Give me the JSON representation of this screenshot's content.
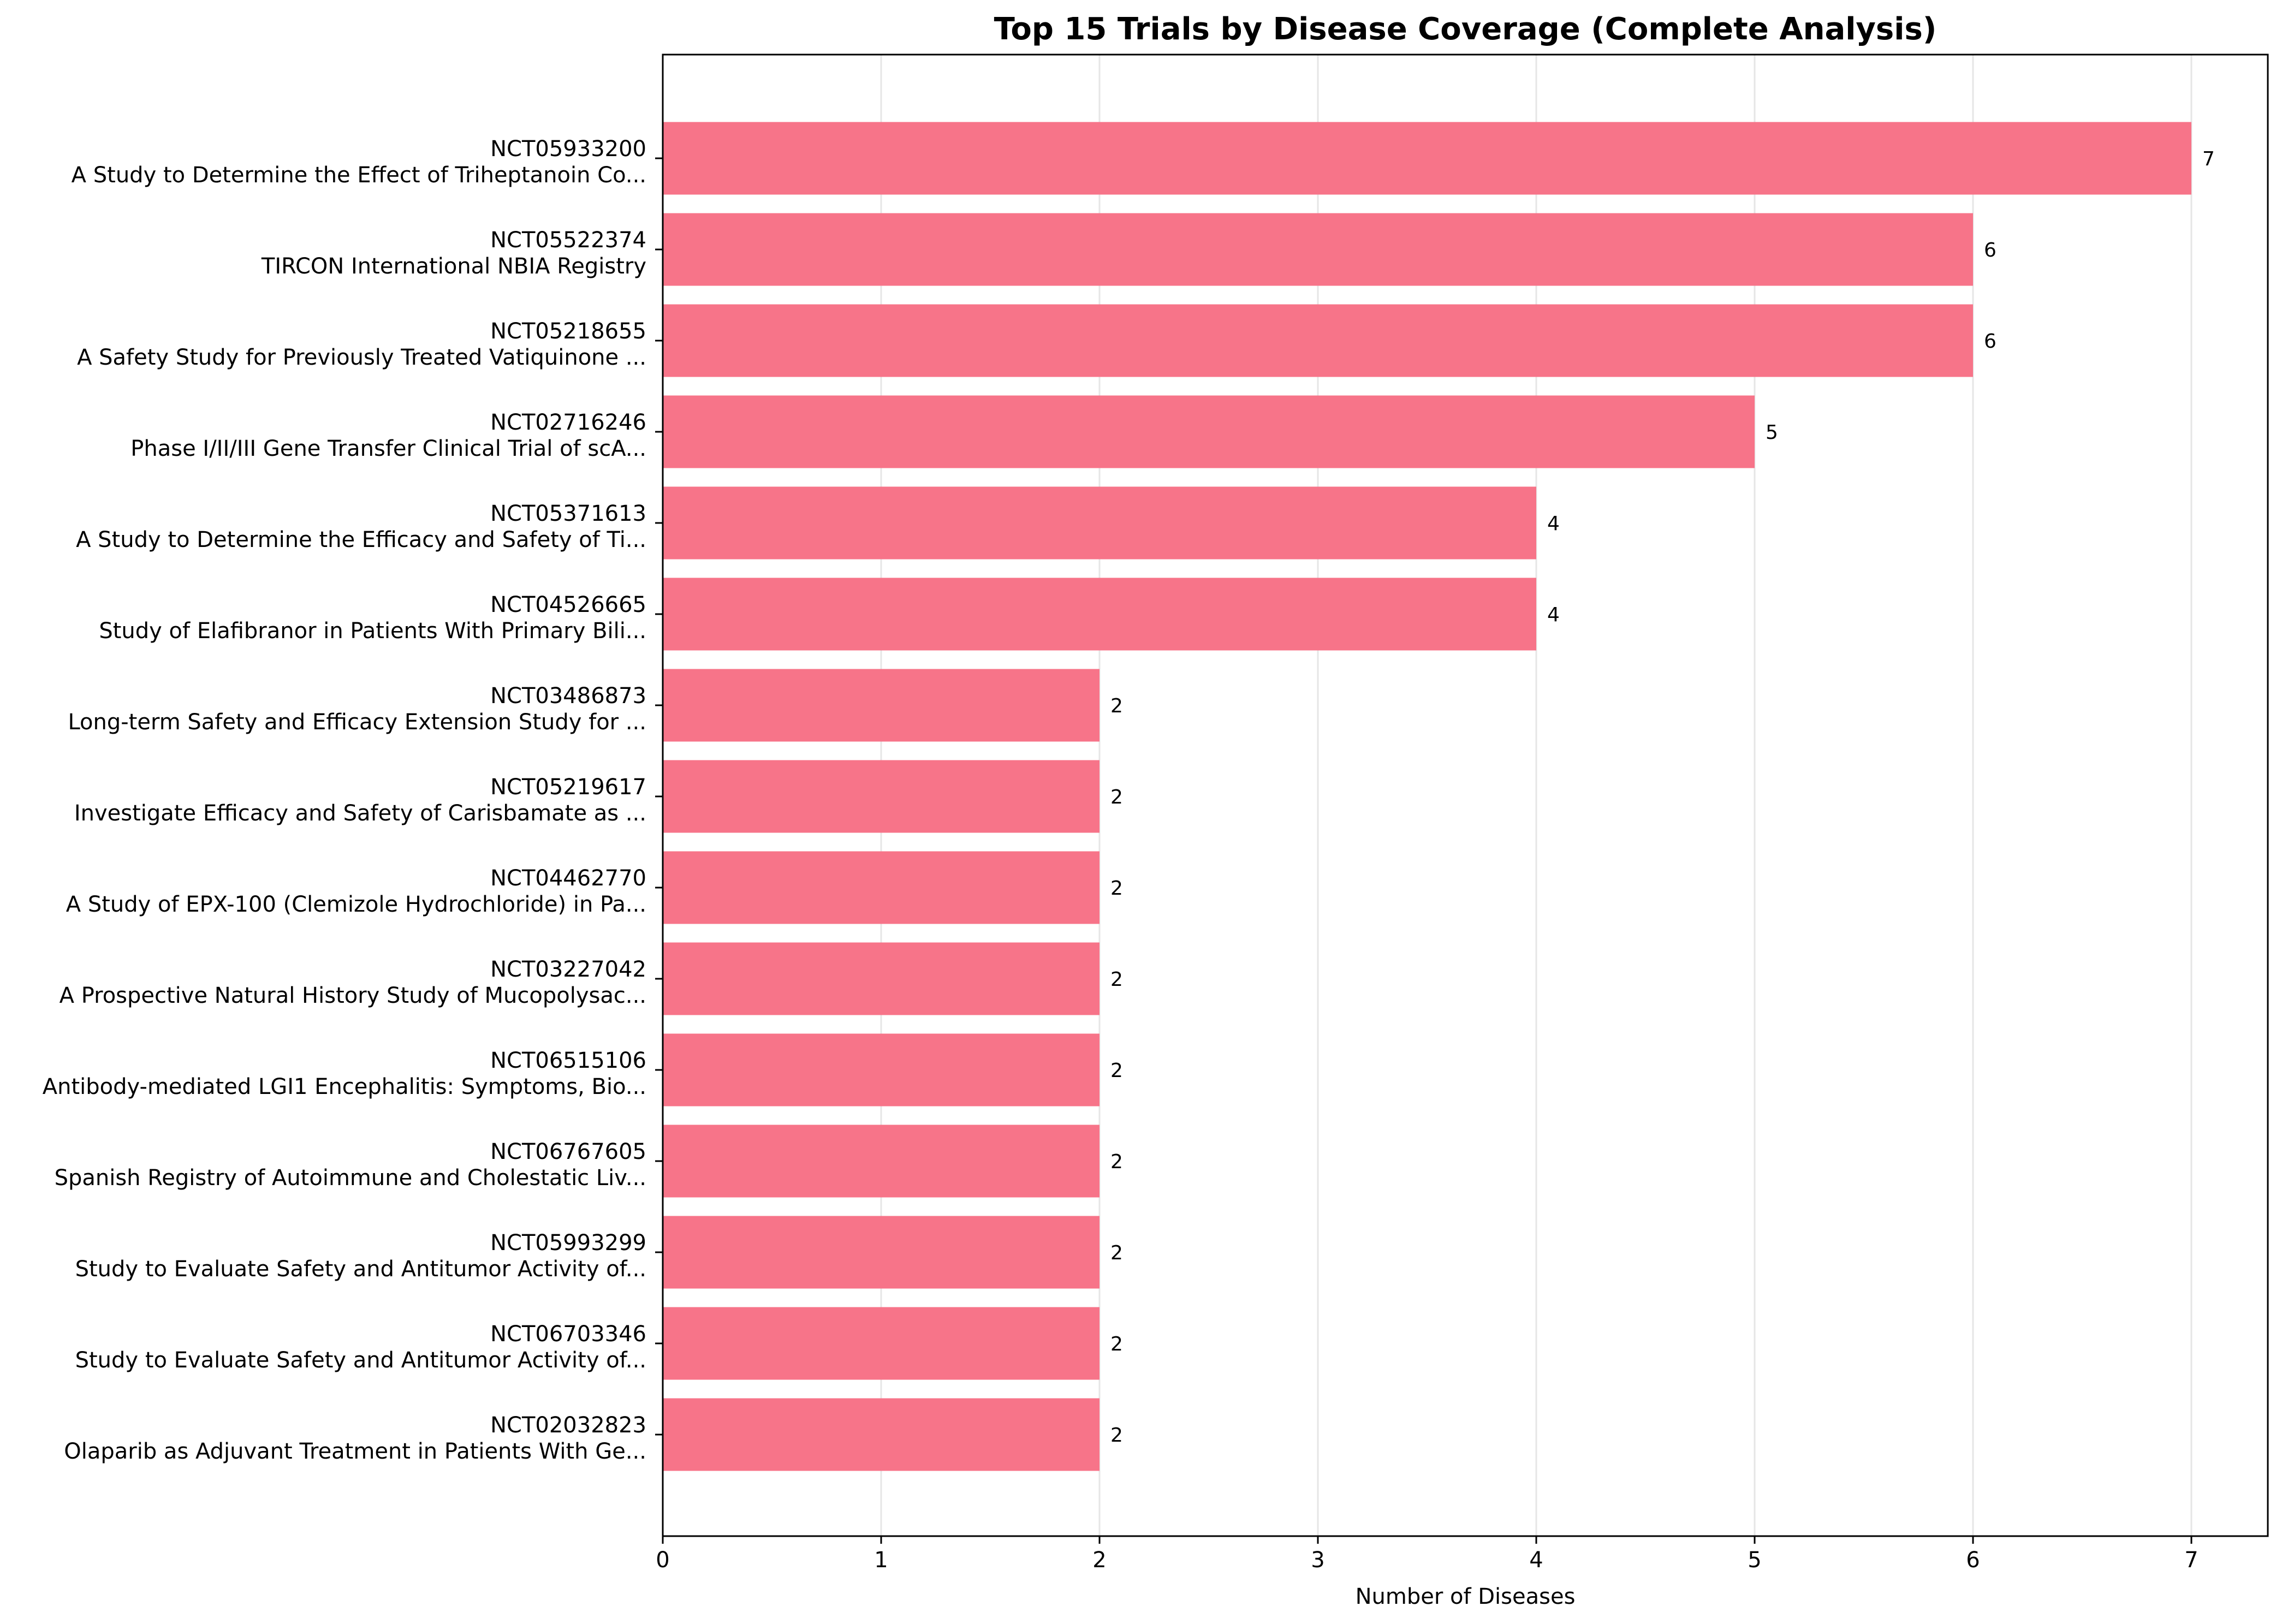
{
  "chart_data": {
    "type": "bar",
    "orientation": "horizontal",
    "title": "Top 15 Trials by Disease Coverage (Complete Analysis)",
    "xlabel": "Number of Diseases",
    "ylabel": "",
    "xlim": [
      0,
      7.35
    ],
    "xticks": [
      0,
      1,
      2,
      3,
      4,
      5,
      6,
      7
    ],
    "grid": "x",
    "bar_color": "#f77489",
    "categories": [
      {
        "id": "NCT05933200",
        "title": "A Study to Determine the Effect of Triheptanoin Co..."
      },
      {
        "id": "NCT05522374",
        "title": "TIRCON International NBIA Registry"
      },
      {
        "id": "NCT05218655",
        "title": "A Safety Study for Previously Treated Vatiquinone ..."
      },
      {
        "id": "NCT02716246",
        "title": "Phase I/II/III Gene Transfer Clinical Trial of scA..."
      },
      {
        "id": "NCT05371613",
        "title": "A Study to Determine the Efficacy and Safety of Ti..."
      },
      {
        "id": "NCT04526665",
        "title": "Study of Elafibranor in Patients With Primary Bili..."
      },
      {
        "id": "NCT03486873",
        "title": "Long-term Safety and Efficacy Extension Study for ..."
      },
      {
        "id": "NCT05219617",
        "title": "Investigate Efficacy and Safety of Carisbamate as ..."
      },
      {
        "id": "NCT04462770",
        "title": "A Study of EPX-100 (Clemizole Hydrochloride) in Pa..."
      },
      {
        "id": "NCT03227042",
        "title": "A Prospective Natural History Study of Mucopolysac..."
      },
      {
        "id": "NCT06515106",
        "title": "Antibody-mediated LGI1 Encephalitis: Symptoms, Bio..."
      },
      {
        "id": "NCT06767605",
        "title": "Spanish Registry of Autoimmune and Cholestatic Liv..."
      },
      {
        "id": "NCT05993299",
        "title": "Study to Evaluate Safety and Antitumor Activity of..."
      },
      {
        "id": "NCT06703346",
        "title": "Study to Evaluate Safety and Antitumor Activity of..."
      },
      {
        "id": "NCT02032823",
        "title": "Olaparib as Adjuvant Treatment in Patients With Ge..."
      }
    ],
    "values": [
      7,
      6,
      6,
      5,
      4,
      4,
      2,
      2,
      2,
      2,
      2,
      2,
      2,
      2,
      2
    ],
    "data_labels": [
      "7",
      "6",
      "6",
      "5",
      "4",
      "4",
      "2",
      "2",
      "2",
      "2",
      "2",
      "2",
      "2",
      "2",
      "2"
    ]
  }
}
